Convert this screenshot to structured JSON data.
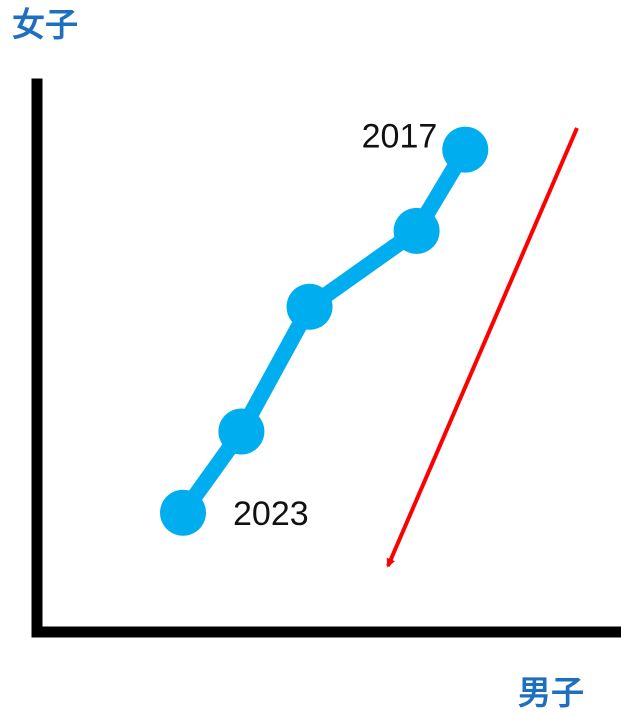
{
  "chart_data": {
    "type": "line",
    "xlabel": "男子",
    "ylabel": "女子",
    "series": [
      {
        "points": [
          {
            "x": 4.4,
            "y": 8.9,
            "label": "2017"
          },
          {
            "x": 3.9,
            "y": 7.4
          },
          {
            "x": 2.8,
            "y": 6.0
          },
          {
            "x": 2.1,
            "y": 3.7
          },
          {
            "x": 1.5,
            "y": 2.2,
            "label": "2023"
          }
        ]
      }
    ],
    "xlim": [
      0,
      6
    ],
    "ylim": [
      0,
      10
    ],
    "grid": false,
    "colors": {
      "series": "#00adef",
      "trend_arrow": "#ff0000",
      "axes": "#000000",
      "axis_title": "#1f6fc1"
    }
  }
}
